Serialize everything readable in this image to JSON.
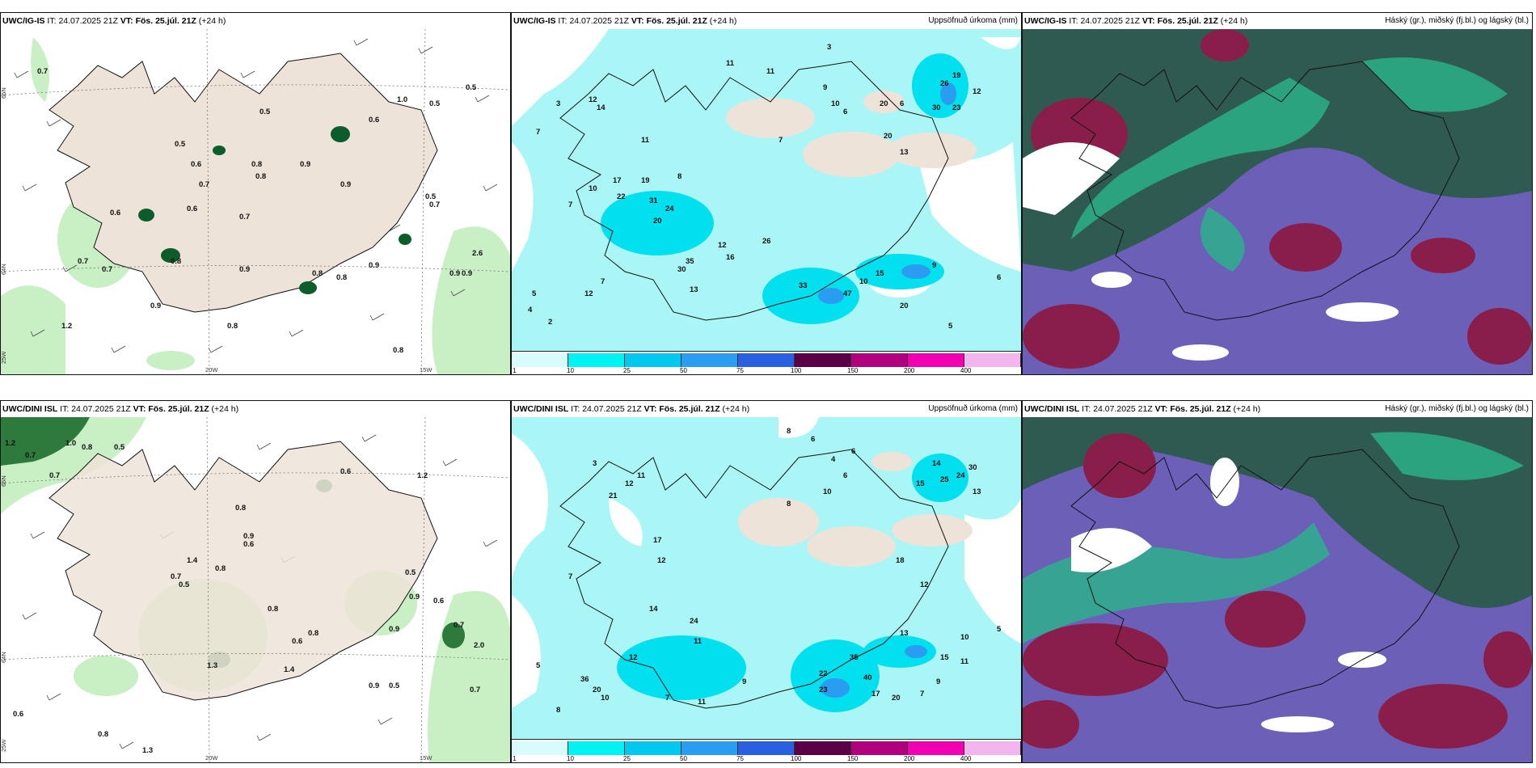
{
  "panels": [
    {
      "id": "p1",
      "model": "UWC/IG-IS",
      "it_label": "IT:",
      "it_value": "24.07.2025 21Z",
      "vt_label": "VT:",
      "vt_value": "Fös. 25.júl. 21Z",
      "lead": "(+24 h)",
      "field": ""
    },
    {
      "id": "p2",
      "model": "UWC/IG-IS",
      "it_label": "IT:",
      "it_value": "24.07.2025 21Z",
      "vt_label": "VT:",
      "vt_value": "Fös. 25.júl. 21Z",
      "lead": "(+24 h)",
      "field": "Uppsöfnuð úrkoma (mm)"
    },
    {
      "id": "p3",
      "model": "UWC/IG-IS",
      "it_label": "IT:",
      "it_value": "24.07.2025 21Z",
      "vt_label": "VT:",
      "vt_value": "Fös. 25.júl. 21Z",
      "lead": "(+24 h)",
      "field": "Háský (gr.), miðský (fj.bl.) og lágský (bl.)"
    },
    {
      "id": "p4",
      "model": "UWC/DINI ISL",
      "it_label": "IT:",
      "it_value": "24.07.2025 21Z",
      "vt_label": "VT:",
      "vt_value": "Fös. 25.júl. 21Z",
      "lead": "(+24 h)",
      "field": ""
    },
    {
      "id": "p5",
      "model": "UWC/DINI ISL",
      "it_label": "IT:",
      "it_value": "24.07.2025 21Z",
      "vt_label": "VT:",
      "vt_value": "Fös. 25.júl. 21Z",
      "lead": "(+24 h)",
      "field": "Uppsöfnuð úrkoma (mm)"
    },
    {
      "id": "p6",
      "model": "UWC/DINI ISL",
      "it_label": "IT:",
      "it_value": "24.07.2025 21Z",
      "vt_label": "VT:",
      "vt_value": "Fös. 25.júl. 21Z",
      "lead": "(+24 h)",
      "field": "Háský (gr.), miðský (fj.bl.) og lágský (bl.)"
    }
  ],
  "axis_labels": {
    "lat66": "66N",
    "lat64": "64N",
    "lon25": "25W",
    "lon20": "20W",
    "lon15": "15W"
  },
  "colorbar": {
    "labels": [
      "1",
      "10",
      "25",
      "50",
      "75",
      "100",
      "150",
      "200",
      "400"
    ],
    "colors": [
      "#d8fbfb",
      "#00f2f2",
      "#00c8ee",
      "#2a9df0",
      "#2a5fe0",
      "#1f2fb0",
      "#5a0046",
      "#b0007e",
      "#f000b0",
      "#f2b5ee"
    ]
  },
  "precip_values_p1": [
    "0.7",
    "0.5",
    "0.5",
    "1.0",
    "0.6",
    "0.5",
    "0.6",
    "0.8",
    "0.9",
    "0.7",
    "0.8",
    "0.9",
    "0.6",
    "0.7",
    "0.6",
    "0.7",
    "0.5",
    "0.8",
    "0.9",
    "0.8",
    "0.9",
    "0.7",
    "0.8",
    "0.9",
    "0.9",
    "2.6",
    "0.9",
    "0.7",
    "1.2",
    "0.8",
    "0.8",
    "0.5"
  ],
  "precip_values_p2": [
    "3",
    "3",
    "11",
    "11",
    "10",
    "14",
    "12",
    "6",
    "9",
    "6",
    "20",
    "26",
    "30",
    "23",
    "19",
    "12",
    "7",
    "7",
    "10",
    "8",
    "11",
    "13",
    "20",
    "19",
    "31",
    "20",
    "17",
    "24",
    "22",
    "35",
    "30",
    "47",
    "16",
    "13",
    "7",
    "12",
    "5",
    "4",
    "2",
    "7",
    "10",
    "6",
    "9",
    "20",
    "15",
    "33",
    "26",
    "12",
    "5"
  ],
  "precip_values_p4": [
    "1.2",
    "0.7",
    "1.0",
    "0.8",
    "0.5",
    "0.6",
    "0.7",
    "1.2",
    "0.5",
    "0.8",
    "0.9",
    "0.6",
    "0.8",
    "1.4",
    "0.5",
    "0.7",
    "0.9",
    "0.6",
    "0.8",
    "0.9",
    "0.7",
    "0.8",
    "2.0",
    "0.5",
    "0.6",
    "0.9",
    "1.3",
    "1.4",
    "0.8",
    "0.7",
    "0.6",
    "1.3"
  ],
  "precip_values_p5": [
    "8",
    "6",
    "3",
    "6",
    "4",
    "14",
    "10",
    "12",
    "8",
    "6",
    "21",
    "11",
    "25",
    "24",
    "30",
    "15",
    "13",
    "18",
    "12",
    "14",
    "11",
    "7",
    "17",
    "12",
    "24",
    "22",
    "35",
    "40",
    "23",
    "17",
    "20",
    "15",
    "10",
    "9",
    "11",
    "7",
    "5",
    "8",
    "13",
    "5",
    "20",
    "36",
    "10",
    "12",
    "7",
    "11",
    "9"
  ]
}
